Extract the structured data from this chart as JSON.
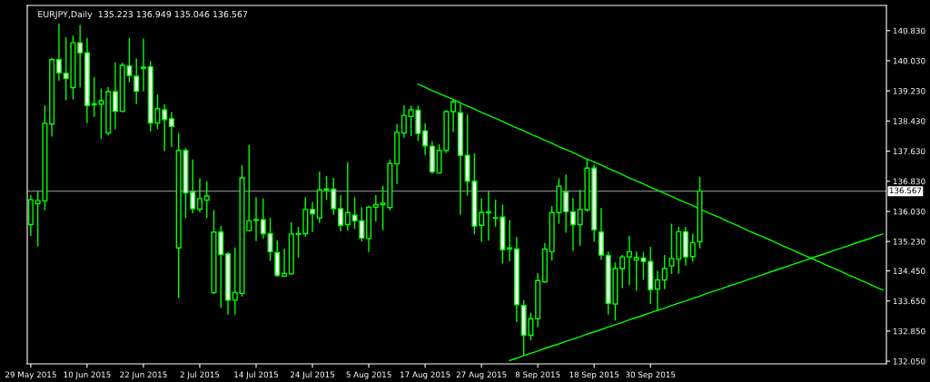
{
  "chart_data": {
    "type": "candlestick",
    "title": "EURJPY,Daily  135.223 136.949 135.046 136.567",
    "categories": [
      "29 May 2015",
      null,
      null,
      null,
      null,
      null,
      null,
      null,
      "10 Jun 2015",
      null,
      null,
      null,
      null,
      null,
      null,
      null,
      "22 Jun 2015",
      null,
      null,
      null,
      null,
      null,
      null,
      null,
      "2 Jul 2015",
      null,
      null,
      null,
      null,
      null,
      null,
      null,
      "14 Jul 2015",
      null,
      null,
      null,
      null,
      null,
      null,
      null,
      "24 Jul 2015",
      null,
      null,
      null,
      null,
      null,
      null,
      null,
      "5 Aug 2015",
      null,
      null,
      null,
      null,
      null,
      null,
      null,
      "17 Aug 2015",
      null,
      null,
      null,
      null,
      null,
      null,
      null,
      "27 Aug 2015",
      null,
      null,
      null,
      null,
      null,
      null,
      null,
      "8 Sep 2015",
      null,
      null,
      null,
      null,
      null,
      null,
      null,
      "18 Sep 2015",
      null,
      null,
      null,
      null,
      null,
      null,
      null,
      "30 Sep 2015",
      null,
      null,
      null,
      null,
      null,
      null,
      null,
      null,
      null,
      null,
      null,
      null,
      null,
      null,
      null,
      null,
      null,
      null,
      null,
      null,
      null,
      null,
      null,
      null,
      null,
      null,
      null,
      null,
      null,
      null,
      null,
      null,
      null
    ],
    "color": "#00ff00",
    "ohlc": [
      [
        135.68,
        136.46,
        135.38,
        136.34
      ],
      [
        136.23,
        136.58,
        135.1,
        136.32
      ],
      [
        136.31,
        138.85,
        136.06,
        138.37
      ],
      [
        138.35,
        140.11,
        138.02,
        140.06
      ],
      [
        140.06,
        141.02,
        139.5,
        139.71
      ],
      [
        139.7,
        140.66,
        138.98,
        139.56
      ],
      [
        139.32,
        140.7,
        139.0,
        140.51
      ],
      [
        140.51,
        140.98,
        139.32,
        140.24
      ],
      [
        140.24,
        140.64,
        138.37,
        138.84
      ],
      [
        138.86,
        139.6,
        138.54,
        138.89
      ],
      [
        138.88,
        139.29,
        137.95,
        138.97
      ],
      [
        138.11,
        139.33,
        138.05,
        139.21
      ],
      [
        139.21,
        139.99,
        138.21,
        138.69
      ],
      [
        138.69,
        139.98,
        138.66,
        139.91
      ],
      [
        139.89,
        140.64,
        139.46,
        139.64
      ],
      [
        139.62,
        140.09,
        138.88,
        139.22
      ],
      [
        139.83,
        140.62,
        139.22,
        139.86
      ],
      [
        139.87,
        140.02,
        138.15,
        138.38
      ],
      [
        138.38,
        139.14,
        138.21,
        138.76
      ],
      [
        138.73,
        138.88,
        137.63,
        138.47
      ],
      [
        138.49,
        138.66,
        137.74,
        138.29
      ],
      [
        135.06,
        138.11,
        133.73,
        137.65
      ],
      [
        137.65,
        137.71,
        135.85,
        136.52
      ],
      [
        136.54,
        137.41,
        135.98,
        136.1
      ],
      [
        136.09,
        136.91,
        136.01,
        136.37
      ],
      [
        136.33,
        136.83,
        135.86,
        136.44
      ],
      [
        133.87,
        136.06,
        133.84,
        135.48
      ],
      [
        135.48,
        135.65,
        133.47,
        134.88
      ],
      [
        134.9,
        134.95,
        133.29,
        133.67
      ],
      [
        133.67,
        135.07,
        133.29,
        133.87
      ],
      [
        133.85,
        137.26,
        133.77,
        136.92
      ],
      [
        135.52,
        137.79,
        135.5,
        135.78
      ],
      [
        135.79,
        136.41,
        135.24,
        135.81
      ],
      [
        135.81,
        136.37,
        135.31,
        135.44
      ],
      [
        135.44,
        135.86,
        134.72,
        134.96
      ],
      [
        134.94,
        135.26,
        134.29,
        134.33
      ],
      [
        134.31,
        135.04,
        134.29,
        134.38
      ],
      [
        134.37,
        135.74,
        134.35,
        135.43
      ],
      [
        135.42,
        135.62,
        134.8,
        135.44
      ],
      [
        135.44,
        136.41,
        135.36,
        136.08
      ],
      [
        136.08,
        136.28,
        135.48,
        135.97
      ],
      [
        135.85,
        137.09,
        135.72,
        136.6
      ],
      [
        136.6,
        136.97,
        136.33,
        136.63
      ],
      [
        136.62,
        136.92,
        135.94,
        136.1
      ],
      [
        136.1,
        136.46,
        135.5,
        135.66
      ],
      [
        135.68,
        137.33,
        135.52,
        136.0
      ],
      [
        135.93,
        136.41,
        135.56,
        135.78
      ],
      [
        135.78,
        136.14,
        135.23,
        135.32
      ],
      [
        135.31,
        136.18,
        134.95,
        136.14
      ],
      [
        136.14,
        136.46,
        135.76,
        136.21
      ],
      [
        136.21,
        136.71,
        135.52,
        136.25
      ],
      [
        136.13,
        137.41,
        136.06,
        137.3
      ],
      [
        137.29,
        138.35,
        136.76,
        138.13
      ],
      [
        138.11,
        138.84,
        137.99,
        138.58
      ],
      [
        138.55,
        138.84,
        138.03,
        138.73
      ],
      [
        138.72,
        138.84,
        137.9,
        138.1
      ],
      [
        138.17,
        138.37,
        137.53,
        137.77
      ],
      [
        137.76,
        137.89,
        137.03,
        137.08
      ],
      [
        137.05,
        137.81,
        137.03,
        137.65
      ],
      [
        137.65,
        138.72,
        137.58,
        138.68
      ],
      [
        138.68,
        139.0,
        138.14,
        138.94
      ],
      [
        138.65,
        138.89,
        135.94,
        137.52
      ],
      [
        137.52,
        138.6,
        136.45,
        136.83
      ],
      [
        136.83,
        137.57,
        135.42,
        135.64
      ],
      [
        135.66,
        136.38,
        135.22,
        136.0
      ],
      [
        135.99,
        136.58,
        135.26,
        136.02
      ],
      [
        135.85,
        136.34,
        135.62,
        135.86
      ],
      [
        135.88,
        136.21,
        134.64,
        135.01
      ],
      [
        135.03,
        135.8,
        134.7,
        135.06
      ],
      [
        135.03,
        135.35,
        133.09,
        133.55
      ],
      [
        133.53,
        133.67,
        132.2,
        132.74
      ],
      [
        132.74,
        133.34,
        132.6,
        133.18
      ],
      [
        133.18,
        134.39,
        132.95,
        134.19
      ],
      [
        134.16,
        135.19,
        134.13,
        135.03
      ],
      [
        134.96,
        136.17,
        134.72,
        136.0
      ],
      [
        136.0,
        136.91,
        135.7,
        136.7
      ],
      [
        136.54,
        137.01,
        135.46,
        136.02
      ],
      [
        136.02,
        136.38,
        134.98,
        135.68
      ],
      [
        135.68,
        136.6,
        135.12,
        136.08
      ],
      [
        136.07,
        137.43,
        136.02,
        137.18
      ],
      [
        137.18,
        137.27,
        135.22,
        135.54
      ],
      [
        135.48,
        136.12,
        134.74,
        134.87
      ],
      [
        134.86,
        134.96,
        133.29,
        133.59
      ],
      [
        133.57,
        134.67,
        133.13,
        134.51
      ],
      [
        134.51,
        134.87,
        133.99,
        134.82
      ],
      [
        134.82,
        135.38,
        134.07,
        134.96
      ],
      [
        134.74,
        134.96,
        133.92,
        134.8
      ],
      [
        134.79,
        134.95,
        134.21,
        134.7
      ],
      [
        134.7,
        135.09,
        133.57,
        133.95
      ],
      [
        133.97,
        134.45,
        133.38,
        134.21
      ],
      [
        134.21,
        134.87,
        133.96,
        134.51
      ],
      [
        134.58,
        135.7,
        134.37,
        134.78
      ],
      [
        134.76,
        135.62,
        134.37,
        135.49
      ],
      [
        135.49,
        135.62,
        134.59,
        134.82
      ],
      [
        134.83,
        135.44,
        134.69,
        135.2
      ],
      [
        135.223,
        136.949,
        135.046,
        136.567
      ],
      null,
      null,
      null,
      null,
      null,
      null,
      null,
      null,
      null,
      null,
      null,
      null,
      null,
      null,
      null,
      null,
      null,
      null,
      null,
      null,
      null,
      null,
      null,
      null,
      null,
      null
    ],
    "colors": [
      "#000000",
      "#000000",
      "#000000",
      "#000000",
      "#ffffff",
      "#ffffff",
      "#000000",
      "#ffffff",
      "#ffffff",
      "#000000",
      "#000000",
      "#000000",
      "#ffffff",
      "#000000",
      "#ffffff",
      "#ffffff",
      "#000000",
      "#ffffff",
      "#000000",
      "#ffffff",
      "#ffffff",
      "#000000",
      "#ffffff",
      "#ffffff",
      "#000000",
      "#000000",
      "#000000",
      "#ffffff",
      "#ffffff",
      "#000000",
      "#000000",
      "#000000",
      "#000000",
      "#ffffff",
      "#ffffff",
      "#ffffff",
      "#000000",
      "#000000",
      "#000000",
      "#000000",
      "#ffffff",
      "#000000",
      "#000000",
      "#ffffff",
      "#ffffff",
      "#000000",
      "#ffffff",
      "#ffffff",
      "#000000",
      "#000000",
      "#000000",
      "#000000",
      "#000000",
      "#000000",
      "#000000",
      "#ffffff",
      "#ffffff",
      "#ffffff",
      "#000000",
      "#000000",
      "#000000",
      "#ffffff",
      "#ffffff",
      "#ffffff",
      "#000000",
      "#000000",
      "#000000",
      "#ffffff",
      "#000000",
      "#ffffff",
      "#ffffff",
      "#000000",
      "#000000",
      "#000000",
      "#000000",
      "#000000",
      "#ffffff",
      "#ffffff",
      "#000000",
      "#000000",
      "#ffffff",
      "#ffffff",
      "#ffffff",
      "#000000",
      "#000000",
      "#000000",
      "#000000",
      "#ffffff",
      "#ffffff",
      "#000000",
      "#000000",
      "#000000",
      "#000000",
      "#ffffff",
      "#000000",
      "#000000",
      null,
      null,
      null,
      null,
      null,
      null,
      null,
      null,
      null,
      null,
      null,
      null,
      null,
      null,
      null,
      null,
      null,
      null,
      null,
      null,
      null,
      null,
      null,
      null,
      null,
      null
    ],
    "series": [
      {
        "type": "line",
        "color": "#00ff00",
        "values": [
          null,
          null,
          null,
          null,
          null,
          null,
          null,
          null,
          null,
          null,
          null,
          null,
          null,
          null,
          null,
          null,
          null,
          null,
          null,
          null,
          null,
          null,
          null,
          null,
          null,
          null,
          null,
          null,
          null,
          null,
          null,
          null,
          null,
          null,
          null,
          null,
          null,
          null,
          null,
          null,
          null,
          null,
          null,
          null,
          null,
          null,
          null,
          null,
          null,
          null,
          null,
          null,
          null,
          null,
          null,
          139.41,
          139.33,
          139.24,
          139.16,
          139.08,
          139.0,
          138.91,
          138.83,
          138.75,
          138.66,
          138.58,
          138.5,
          138.42,
          138.33,
          138.25,
          138.17,
          138.08,
          138.0,
          137.92,
          137.84,
          137.75,
          137.67,
          137.59,
          137.5,
          137.42,
          137.34,
          137.26,
          137.17,
          137.09,
          137.01,
          136.92,
          136.84,
          136.76,
          136.67,
          136.59,
          136.51,
          136.43,
          136.34,
          136.26,
          136.18,
          136.09,
          136.01,
          135.93,
          135.85,
          135.76,
          135.68,
          135.6,
          135.51,
          135.43,
          135.35,
          135.27,
          135.18,
          135.1,
          135.02,
          134.93,
          134.85,
          134.77,
          134.69,
          134.6,
          134.52,
          134.44,
          134.35,
          134.27,
          134.19,
          134.11,
          134.02,
          133.94
        ]
      },
      {
        "type": "line",
        "color": "#00ff00",
        "values": [
          null,
          null,
          null,
          null,
          null,
          null,
          null,
          null,
          null,
          null,
          null,
          null,
          null,
          null,
          null,
          null,
          null,
          null,
          null,
          null,
          null,
          null,
          null,
          null,
          null,
          null,
          null,
          null,
          null,
          null,
          null,
          null,
          null,
          null,
          null,
          null,
          null,
          null,
          null,
          null,
          null,
          null,
          null,
          null,
          null,
          null,
          null,
          null,
          null,
          null,
          null,
          null,
          null,
          null,
          null,
          null,
          null,
          null,
          null,
          null,
          null,
          null,
          null,
          null,
          null,
          null,
          null,
          null,
          132.07,
          132.13,
          132.2,
          132.26,
          132.32,
          132.39,
          132.45,
          132.51,
          132.58,
          132.64,
          132.7,
          132.77,
          132.83,
          132.89,
          132.96,
          133.02,
          133.08,
          133.15,
          133.21,
          133.27,
          133.34,
          133.4,
          133.46,
          133.53,
          133.59,
          133.65,
          133.72,
          133.78,
          133.85,
          133.91,
          133.97,
          134.04,
          134.1,
          134.16,
          134.23,
          134.29,
          134.35,
          134.42,
          134.48,
          134.54,
          134.61,
          134.67,
          134.73,
          134.8,
          134.86,
          134.92,
          134.99,
          135.05,
          135.11,
          135.18,
          135.24,
          135.3,
          135.37,
          135.43
        ]
      }
    ],
    "ylim": [
      131.98,
      141.5
    ],
    "yticks": [
      {
        "value": 132.05,
        "label": "132.050"
      },
      {
        "value": 132.85,
        "label": "132.850"
      },
      {
        "value": 133.65,
        "label": "133.650"
      },
      {
        "value": 134.45,
        "label": "134.450"
      },
      {
        "value": 135.23,
        "label": "135.230"
      },
      {
        "value": 136.03,
        "label": "136.030"
      },
      {
        "value": 136.83,
        "label": "136.830"
      },
      {
        "value": 137.63,
        "label": "137.630"
      },
      {
        "value": 138.43,
        "label": "138.430"
      },
      {
        "value": 139.23,
        "label": "139.230"
      },
      {
        "value": 140.03,
        "label": "140.030"
      },
      {
        "value": 140.83,
        "label": "140.830"
      }
    ],
    "ref_lines": [
      {
        "axis": "y",
        "value": 136.567,
        "label": "136.567",
        "color": "#808080"
      }
    ],
    "grid": false,
    "legend": false
  }
}
